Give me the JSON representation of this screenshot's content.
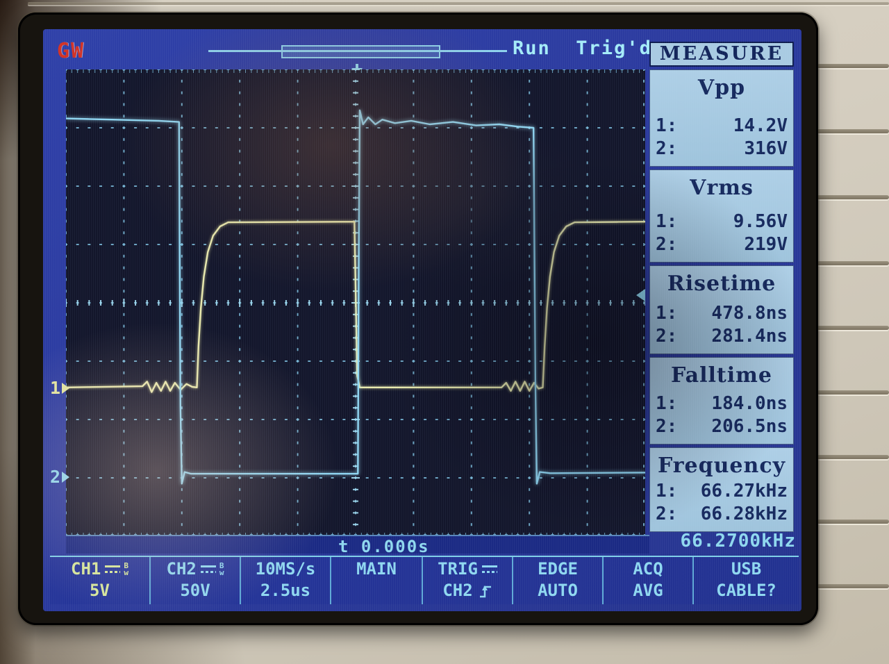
{
  "device": {
    "brand_logo": "GW",
    "mode_title": "MEASURE"
  },
  "top_bar": {
    "run_status": "Run",
    "trigger_status": "Trig'd"
  },
  "icons": {
    "bw_top": "B",
    "bw_bottom": "w"
  },
  "measure": {
    "sections": [
      {
        "title": "Vpp",
        "rows": [
          {
            "ch": "1:",
            "value": "14.2V"
          },
          {
            "ch": "2:",
            "value": "316V"
          }
        ]
      },
      {
        "title": "Vrms",
        "rows": [
          {
            "ch": "1:",
            "value": "9.56V"
          },
          {
            "ch": "2:",
            "value": "219V"
          }
        ]
      },
      {
        "title": "Risetime",
        "rows": [
          {
            "ch": "1:",
            "value": "478.8ns"
          },
          {
            "ch": "2:",
            "value": "281.4ns"
          }
        ]
      },
      {
        "title": "Falltime",
        "rows": [
          {
            "ch": "1:",
            "value": "184.0ns"
          },
          {
            "ch": "2:",
            "value": "206.5ns"
          }
        ]
      },
      {
        "title": "Frequency",
        "rows": [
          {
            "ch": "1:",
            "value": "66.27kHz"
          },
          {
            "ch": "2:",
            "value": "66.28kHz"
          }
        ]
      }
    ]
  },
  "horizontal": {
    "time_offset": "t 0.000s",
    "frequency_counter": "66.2700kHz"
  },
  "markers": {
    "ch1": "1",
    "ch2": "2"
  },
  "menu": {
    "cells": [
      {
        "id": "ch1",
        "line1": "CH1",
        "line2": "5V"
      },
      {
        "id": "ch2",
        "line1": "CH2",
        "line2": "50V"
      },
      {
        "id": "rate",
        "line1": "10MS/s",
        "line2": "2.5us"
      },
      {
        "id": "main",
        "line1": "MAIN",
        "line2": ""
      },
      {
        "id": "trig",
        "line1": "TRIG",
        "line2": "CH2"
      },
      {
        "id": "edge",
        "line1": "EDGE",
        "line2": "AUTO"
      },
      {
        "id": "acq",
        "line1": "ACQ",
        "line2": "AVG"
      },
      {
        "id": "usb",
        "line1": "USB",
        "line2": "CABLE?"
      }
    ]
  },
  "colors": {
    "trace_ch1": "#e9eaae",
    "trace_ch2": "#8fd6f2",
    "grid": "#7cbede",
    "grid_center": "#a0daf0",
    "screen_blue": "#2b3a9e",
    "panel_blue": "#a9cbe2",
    "text_cyan": "#8fd8ee",
    "text_navy": "#16295e",
    "logo_red": "#d23124"
  },
  "chart_data": {
    "type": "line",
    "title": "Oscilloscope traces: CH1 and CH2 square waves",
    "x_unit": "us",
    "y_unit": "V",
    "timebase_us_per_div": 2.5,
    "sample_rate": "10MS/s",
    "x_range_us": [
      -12.5,
      12.5
    ],
    "divisions": {
      "x": 10,
      "y": 8
    },
    "grid": "dotted",
    "trigger": {
      "source": "CH2",
      "slope": "rising",
      "mode": "AUTO",
      "type": "EDGE",
      "time_us": 0,
      "level_div_from_center": 0.13
    },
    "series": [
      {
        "name": "CH1",
        "volts_per_div": 5,
        "ground_div_from_center": -1.45,
        "color": "#e9eaae",
        "points": [
          [
            -12.5,
            0
          ],
          [
            -9.2,
            0.1
          ],
          [
            -9.0,
            0.5
          ],
          [
            -8.8,
            -0.4
          ],
          [
            -8.6,
            0.4
          ],
          [
            -8.4,
            -0.3
          ],
          [
            -8.2,
            0.5
          ],
          [
            -8.0,
            -0.3
          ],
          [
            -7.8,
            0.4
          ],
          [
            -7.55,
            -0.2
          ],
          [
            -7.3,
            0.3
          ],
          [
            -7.05,
            0.05
          ],
          [
            -6.85,
            0
          ],
          [
            -6.78,
            3.5
          ],
          [
            -6.68,
            6.8
          ],
          [
            -6.55,
            9.5
          ],
          [
            -6.38,
            11.6
          ],
          [
            -6.15,
            13
          ],
          [
            -5.85,
            13.8
          ],
          [
            -5.5,
            14.15
          ],
          [
            -0.05,
            14.2
          ],
          [
            0.07,
            1
          ],
          [
            0.18,
            0
          ],
          [
            6.3,
            0
          ],
          [
            6.5,
            0.4
          ],
          [
            6.7,
            -0.3
          ],
          [
            6.9,
            0.5
          ],
          [
            7.1,
            -0.3
          ],
          [
            7.3,
            0.5
          ],
          [
            7.5,
            -0.3
          ],
          [
            7.7,
            0.4
          ],
          [
            7.9,
            -0.1
          ],
          [
            8.08,
            0
          ],
          [
            8.16,
            3.5
          ],
          [
            8.26,
            6.8
          ],
          [
            8.39,
            9.5
          ],
          [
            8.56,
            11.6
          ],
          [
            8.79,
            13
          ],
          [
            9.09,
            13.8
          ],
          [
            9.45,
            14.15
          ],
          [
            12.5,
            14.2
          ]
        ]
      },
      {
        "name": "CH2",
        "volts_per_div": 50,
        "ground_div_from_center": -2.98,
        "color": "#8fd6f2",
        "points": [
          [
            -12.5,
            307
          ],
          [
            -10.5,
            306
          ],
          [
            -8.5,
            305
          ],
          [
            -7.62,
            304
          ],
          [
            -7.56,
            60
          ],
          [
            -7.5,
            -6
          ],
          [
            -7.38,
            4
          ],
          [
            -7.1,
            2.5
          ],
          [
            -0.1,
            2.5
          ],
          [
            0.1,
            2.6
          ],
          [
            0.14,
            200
          ],
          [
            0.18,
            314
          ],
          [
            0.32,
            302
          ],
          [
            0.55,
            308
          ],
          [
            0.85,
            302
          ],
          [
            1.15,
            306
          ],
          [
            1.7,
            303
          ],
          [
            2.4,
            305
          ],
          [
            3.2,
            302
          ],
          [
            4.2,
            304
          ],
          [
            5.2,
            301
          ],
          [
            6.2,
            302
          ],
          [
            7.0,
            300
          ],
          [
            7.68,
            299
          ],
          [
            7.76,
            80
          ],
          [
            7.82,
            -6
          ],
          [
            7.95,
            4
          ],
          [
            8.4,
            3
          ],
          [
            12.5,
            3.5
          ]
        ]
      }
    ]
  }
}
